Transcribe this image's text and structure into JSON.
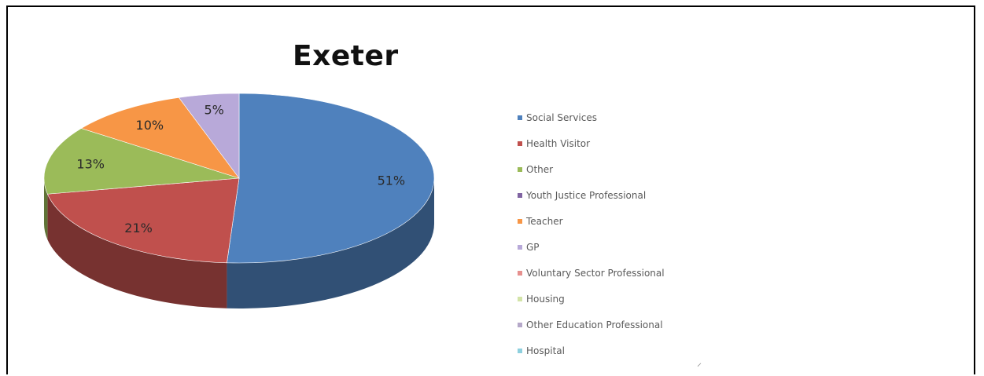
{
  "chart_data": {
    "type": "pie",
    "title": "Exeter",
    "style": "3d",
    "legend_position": "right",
    "slices": [
      {
        "name": "Social Services",
        "value": 51,
        "label": "51%",
        "color": "#4f81bd"
      },
      {
        "name": "Health Visitor",
        "value": 21,
        "label": "21%",
        "color": "#c0504d"
      },
      {
        "name": "Other",
        "value": 13,
        "label": "13%",
        "color": "#9bbb59"
      },
      {
        "name": "Youth Justice Professional",
        "value": 0,
        "label": "",
        "color": "#8064a2"
      },
      {
        "name": "Teacher",
        "value": 10,
        "label": "10%",
        "color": "#f79646"
      },
      {
        "name": "GP",
        "value": 5,
        "label": "5%",
        "color": "#b8a9d9"
      },
      {
        "name": "Voluntary Sector Professional",
        "value": 0,
        "label": "",
        "color": "#e6908e"
      },
      {
        "name": "Housing",
        "value": 0,
        "label": "",
        "color": "#d3e4a8"
      },
      {
        "name": "Other Education Professional",
        "value": 0,
        "label": "",
        "color": "#b5a8c9"
      },
      {
        "name": "Hospital",
        "value": 0,
        "label": "",
        "color": "#8ed0de"
      }
    ]
  }
}
